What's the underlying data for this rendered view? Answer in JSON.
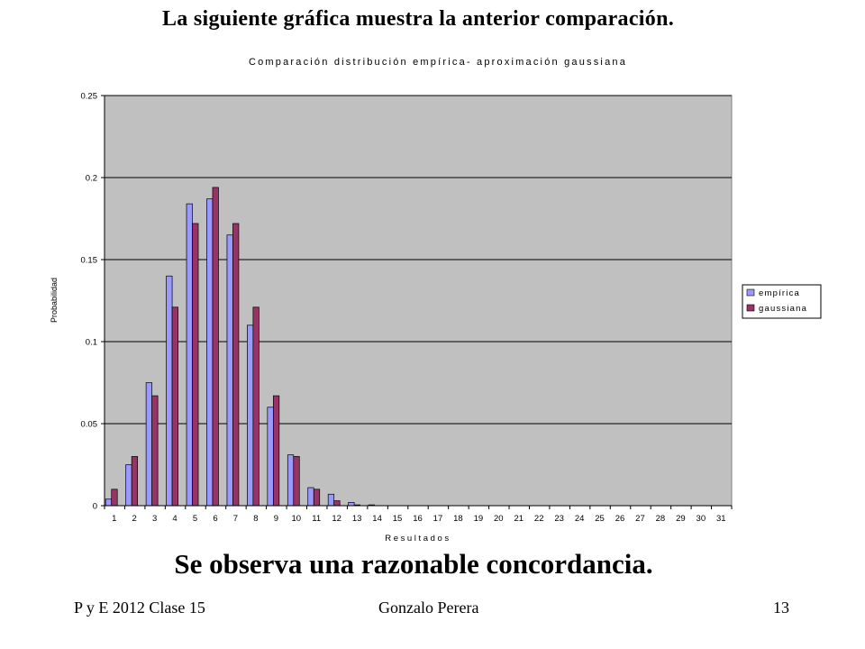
{
  "slide": {
    "heading": "La siguiente gráfica muestra la anterior comparación.",
    "conclusion": "Se observa una razonable concordancia.",
    "footer_left": "P y E 2012 Clase 15",
    "footer_center": "Gonzalo Perera",
    "footer_right": "13"
  },
  "chart_data": {
    "type": "bar",
    "title": "Comparación distribución empírica- aproximación gaussiana",
    "xlabel": "Resultados",
    "ylabel": "Probabilidad",
    "ylim": [
      0,
      0.25
    ],
    "yticks": [
      "0",
      "0.05",
      "0.1",
      "0.15",
      "0.2",
      "0.25"
    ],
    "grid": true,
    "legend_position": "right",
    "categories": [
      "1",
      "2",
      "3",
      "4",
      "5",
      "6",
      "7",
      "8",
      "9",
      "10",
      "11",
      "12",
      "13",
      "14",
      "15",
      "16",
      "17",
      "18",
      "19",
      "20",
      "21",
      "22",
      "23",
      "24",
      "25",
      "26",
      "27",
      "28",
      "29",
      "30",
      "31"
    ],
    "series": [
      {
        "name": "empírica",
        "color": "#9999ff",
        "values": [
          0.004,
          0.025,
          0.075,
          0.14,
          0.184,
          0.187,
          0.165,
          0.11,
          0.06,
          0.031,
          0.011,
          0.007,
          0.002,
          0.0005,
          0,
          0,
          0,
          0,
          0,
          0,
          0,
          0,
          0,
          0,
          0,
          0,
          0,
          0,
          0,
          0,
          0
        ]
      },
      {
        "name": "gaussiana",
        "color": "#993366",
        "values": [
          0.01,
          0.03,
          0.067,
          0.121,
          0.172,
          0.194,
          0.172,
          0.121,
          0.067,
          0.03,
          0.01,
          0.003,
          0.0005,
          0.0001,
          0,
          0,
          0,
          0,
          0,
          0,
          0,
          0,
          0,
          0,
          0,
          0,
          0,
          0,
          0,
          0,
          0
        ]
      }
    ],
    "plot_background": "#c0c0c0"
  }
}
